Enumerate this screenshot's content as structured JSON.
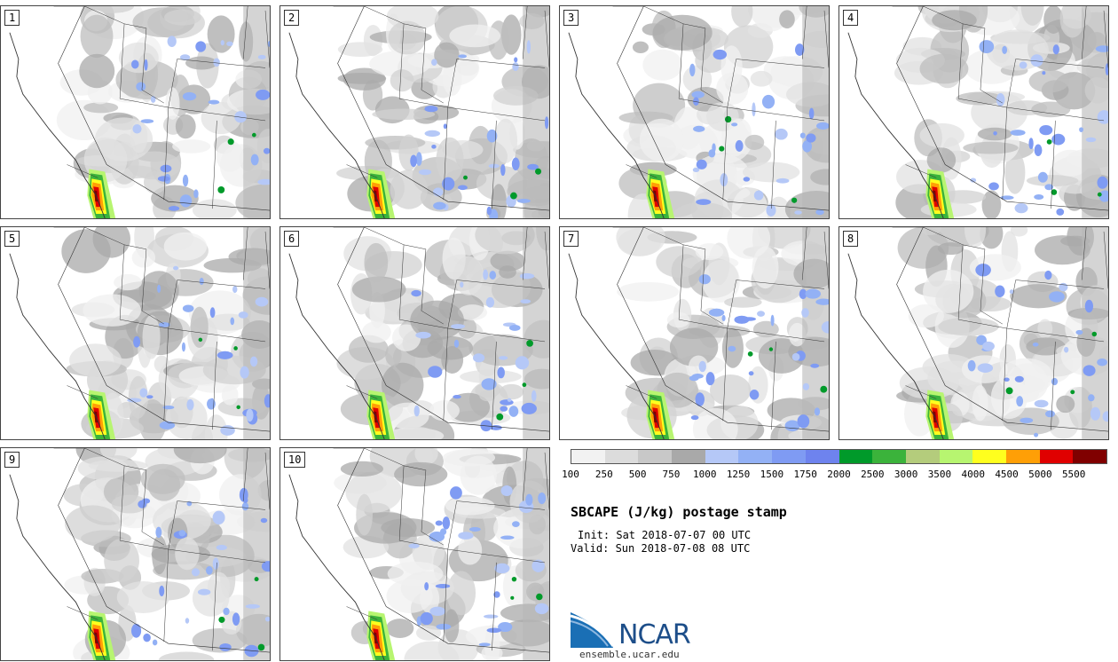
{
  "panels": [
    {
      "label": "1"
    },
    {
      "label": "2"
    },
    {
      "label": "3"
    },
    {
      "label": "4"
    },
    {
      "label": "5"
    },
    {
      "label": "6"
    },
    {
      "label": "7"
    },
    {
      "label": "8"
    },
    {
      "label": "9"
    },
    {
      "label": "10"
    }
  ],
  "colorbar": {
    "colors": [
      "#f2f2f2",
      "#dcdcdc",
      "#c8c8c8",
      "#a9a9a9",
      "#b5c8f7",
      "#93b1f5",
      "#7f9bf3",
      "#6e83ee",
      "#009a2a",
      "#3bb33b",
      "#b4cc7c",
      "#b7f570",
      "#ffff1e",
      "#ff9f06",
      "#e00000",
      "#800000"
    ],
    "ticks": [
      "100",
      "250",
      "500",
      "750",
      "1000",
      "1250",
      "1500",
      "1750",
      "2000",
      "2500",
      "3000",
      "3500",
      "4000",
      "4500",
      "5000",
      "5500"
    ]
  },
  "title": "SBCAPE (J/kg) postage stamp",
  "init": "Init: Sat 2018-07-07 00 UTC",
  "valid": "Valid: Sun 2018-07-08 08 UTC",
  "logo": {
    "text": "NCAR",
    "site": "ensemble.ucar.edu"
  }
}
